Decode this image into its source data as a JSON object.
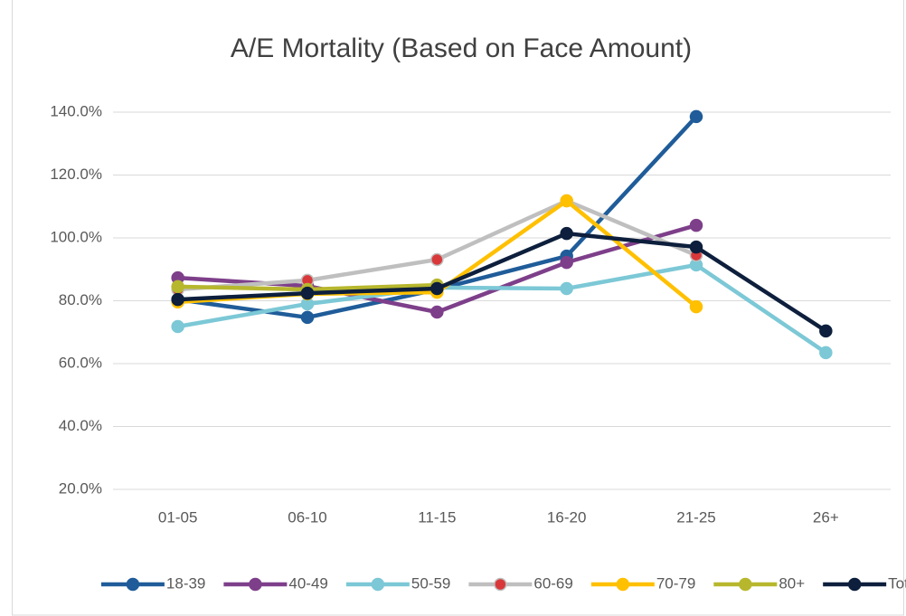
{
  "chart_data": {
    "type": "line",
    "title": "A/E Mortality (Based on Face Amount)",
    "categories": [
      "01-05",
      "06-10",
      "11-15",
      "16-20",
      "21-25",
      "26+"
    ],
    "series": [
      {
        "name": "18-39",
        "color": "#1f5c99",
        "values": [
          80.4,
          74.7,
          83.6,
          94.2,
          138.6,
          null
        ]
      },
      {
        "name": "40-49",
        "color": "#7e3f8a",
        "values": [
          87.3,
          84.7,
          76.4,
          92.2,
          104.0,
          null
        ]
      },
      {
        "name": "50-59",
        "color": "#7cc8d6",
        "values": [
          71.8,
          79.0,
          84.2,
          83.9,
          91.4,
          63.5
        ]
      },
      {
        "name": "60-69",
        "color": "#bfbfbf",
        "marker_color": "#d9383a",
        "values": [
          83.6,
          86.5,
          93.1,
          111.8,
          94.5,
          null
        ]
      },
      {
        "name": "70-79",
        "color": "#ffc000",
        "values": [
          79.6,
          82.2,
          82.7,
          111.8,
          78.1,
          null
        ]
      },
      {
        "name": "80+",
        "color": "#b7b72e",
        "values": [
          84.5,
          83.6,
          85.0,
          null,
          null,
          null
        ]
      },
      {
        "name": "Total",
        "color": "#0d1f3c",
        "values": [
          80.4,
          82.4,
          83.9,
          101.4,
          97.1,
          70.4
        ]
      }
    ],
    "ylim": [
      20,
      140
    ],
    "yticks": [
      {
        "value": 20,
        "label": "20.0%"
      },
      {
        "value": 40,
        "label": "40.0%"
      },
      {
        "value": 60,
        "label": "60.0%"
      },
      {
        "value": 80,
        "label": "80.0%"
      },
      {
        "value": 100,
        "label": "100.0%"
      },
      {
        "value": 120,
        "label": "120.0%"
      },
      {
        "value": 140,
        "label": "140.0%"
      }
    ],
    "grid": true,
    "legend": "bottom"
  }
}
